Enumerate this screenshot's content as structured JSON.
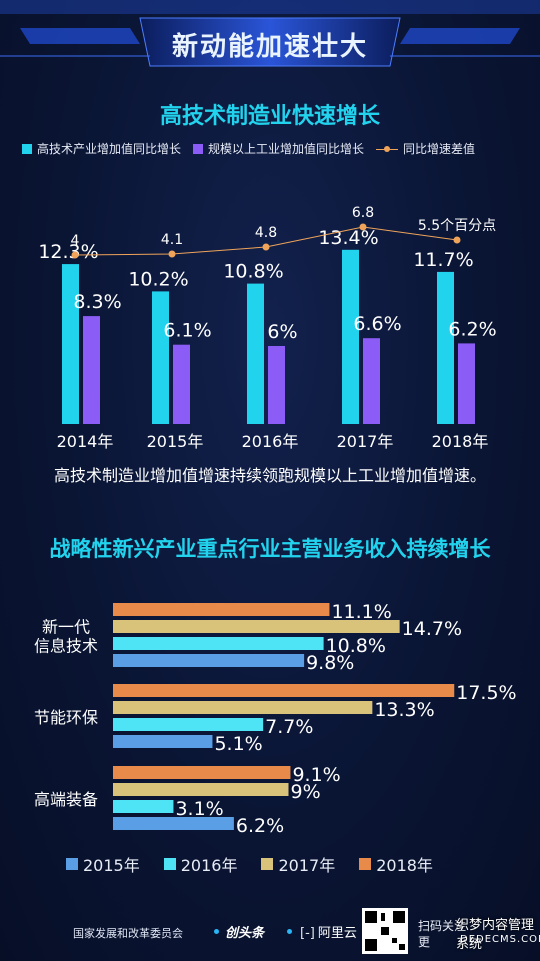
{
  "banner": {
    "title": "新动能加速壮大"
  },
  "chart1": {
    "title": "高技术制造业快速增长",
    "caption": "高技术制造业增加值增速持续领跑规模以上工业增加值增速。"
  },
  "chart2": {
    "title": "战略性新兴产业重点行业主营业务收入持续增长"
  },
  "footer": {
    "org": "国家发展和改革委员会",
    "logo1": "创头条",
    "logo2": "阿里云",
    "scan_line1": "扫码关注",
    "scan_line2": "更"
  },
  "watermark": {
    "line1": "织梦内容管理系统",
    "line2": "DEDECMS.COM"
  },
  "colors": {
    "cyan": "#22d3ee",
    "purple": "#8b5cf6",
    "orange_line": "#f0a45a",
    "y2015": "#5a9ee6",
    "y2016": "#4fe4f5",
    "y2017": "#d9c27a",
    "y2018": "#e88a4a"
  },
  "chart_data": [
    {
      "type": "bar",
      "title": "高技术制造业快速增长",
      "categories": [
        "2014年",
        "2015年",
        "2016年",
        "2017年",
        "2018年"
      ],
      "series": [
        {
          "name": "高技术产业增加值同比增长",
          "values": [
            12.3,
            10.2,
            10.8,
            13.4,
            11.7
          ],
          "labels": [
            "12.3%",
            "10.2%",
            "10.8%",
            "13.4%",
            "11.7%"
          ]
        },
        {
          "name": "规模以上工业增加值同比增长",
          "values": [
            8.3,
            6.1,
            6.0,
            6.6,
            6.2
          ],
          "labels": [
            "8.3%",
            "6.1%",
            "6%",
            "6.6%",
            "6.2%"
          ]
        },
        {
          "name": "同比增速差值",
          "type": "line",
          "values": [
            4,
            4.1,
            4.8,
            6.8,
            5.5
          ],
          "labels": [
            "4",
            "4.1",
            "4.8",
            "6.8",
            "5.5个百分点"
          ]
        }
      ],
      "legend_position": "top"
    },
    {
      "type": "bar",
      "orientation": "horizontal",
      "title": "战略性新兴产业重点行业主营业务收入持续增长",
      "categories": [
        "新一代\n信息技术",
        "节能环保",
        "高端装备"
      ],
      "series": [
        {
          "name": "2015年",
          "values": [
            9.8,
            5.1,
            6.2
          ],
          "labels": [
            "9.8%",
            "5.1%",
            "6.2%"
          ]
        },
        {
          "name": "2016年",
          "values": [
            10.8,
            7.7,
            3.1
          ],
          "labels": [
            "10.8%",
            "7.7%",
            "3.1%"
          ]
        },
        {
          "name": "2017年",
          "values": [
            14.7,
            13.3,
            9
          ],
          "labels": [
            "14.7%",
            "13.3%",
            "9%"
          ]
        },
        {
          "name": "2018年",
          "values": [
            11.1,
            17.5,
            9.1
          ],
          "labels": [
            "11.1%",
            "17.5%",
            "9.1%"
          ]
        }
      ],
      "legend_position": "bottom"
    }
  ]
}
